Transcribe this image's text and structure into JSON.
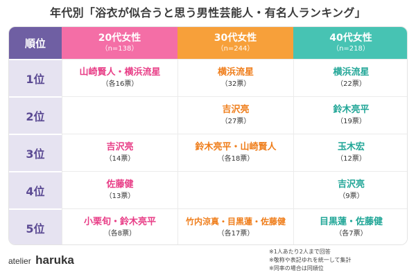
{
  "title": "年代別「浴衣が似合うと思う男性芸能人・有名人ランキング」",
  "header": {
    "rank_label": "順位",
    "columns": [
      {
        "label": "20代女性",
        "n": "（n=138）"
      },
      {
        "label": "30代女性",
        "n": "（n=244）"
      },
      {
        "label": "40代女性",
        "n": "（n=218）"
      }
    ]
  },
  "rows": [
    {
      "rank": "1位",
      "cells": [
        {
          "name": "山崎賢人・横浜流星",
          "votes": "（各16票）"
        },
        {
          "name": "横浜流星",
          "votes": "（32票）"
        },
        {
          "name": "横浜流星",
          "votes": "（22票）"
        }
      ]
    },
    {
      "rank": "2位",
      "cells": [
        {
          "name": "",
          "votes": ""
        },
        {
          "name": "吉沢亮",
          "votes": "（27票）"
        },
        {
          "name": "鈴木亮平",
          "votes": "（19票）"
        }
      ]
    },
    {
      "rank": "3位",
      "cells": [
        {
          "name": "吉沢亮",
          "votes": "（14票）"
        },
        {
          "name": "鈴木亮平・山崎賢人",
          "votes": "（各18票）"
        },
        {
          "name": "玉木宏",
          "votes": "（12票）"
        }
      ]
    },
    {
      "rank": "4位",
      "cells": [
        {
          "name": "佐藤健",
          "votes": "（13票）"
        },
        {
          "name": "",
          "votes": ""
        },
        {
          "name": "吉沢亮",
          "votes": "（9票）"
        }
      ]
    },
    {
      "rank": "5位",
      "cells": [
        {
          "name": "小栗旬・鈴木亮平",
          "votes": "（各8票）"
        },
        {
          "name": "竹内涼真・目黒蓮・佐藤健",
          "votes": "（各17票）"
        },
        {
          "name": "目黒蓮・佐藤健",
          "votes": "（各7票）"
        }
      ]
    }
  ],
  "logo": {
    "prefix": "atelier",
    "name": "haruka"
  },
  "notes": [
    "※1人あたり2人まで回答",
    "※敬称や表記ゆれを統一して集計",
    "※同率の場合は同順位"
  ],
  "colors": {
    "rank_header": "#6f5fa3",
    "col_20": "#f46ea6",
    "col_30": "#f7a03a",
    "col_40": "#47c3b3",
    "rank_bg": "#e6e3f1"
  }
}
